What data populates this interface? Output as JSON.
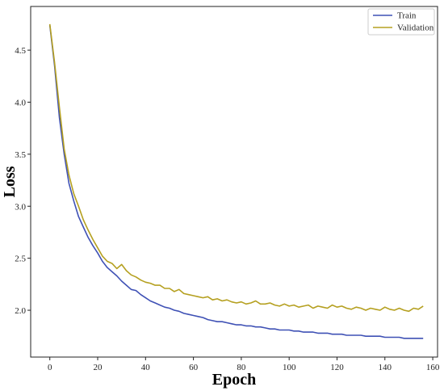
{
  "chart_data": {
    "type": "line",
    "title": "",
    "xlabel": "Epoch",
    "ylabel": "Loss",
    "xlim": [
      -8,
      162
    ],
    "ylim": [
      1.55,
      4.92
    ],
    "xticks": [
      0,
      20,
      40,
      60,
      80,
      100,
      120,
      140,
      160
    ],
    "yticks": [
      2.0,
      2.5,
      3.0,
      3.5,
      4.0,
      4.5
    ],
    "xtick_labels": [
      "0",
      "20",
      "40",
      "60",
      "80",
      "100",
      "120",
      "140",
      "160"
    ],
    "ytick_labels": [
      "2.0",
      "2.5",
      "3.0",
      "3.5",
      "4.0",
      "4.5"
    ],
    "grid": false,
    "legend_position": "top-right",
    "series": [
      {
        "name": "Train",
        "color": "#3f51b5",
        "x": [
          0,
          2,
          4,
          6,
          8,
          10,
          12,
          14,
          16,
          18,
          20,
          22,
          24,
          26,
          28,
          30,
          32,
          34,
          36,
          38,
          40,
          42,
          44,
          46,
          48,
          50,
          52,
          54,
          56,
          58,
          60,
          62,
          64,
          66,
          68,
          70,
          72,
          74,
          76,
          78,
          80,
          82,
          84,
          86,
          88,
          90,
          92,
          94,
          96,
          98,
          100,
          102,
          104,
          106,
          108,
          110,
          112,
          114,
          116,
          118,
          120,
          122,
          124,
          126,
          128,
          130,
          132,
          134,
          136,
          138,
          140,
          142,
          144,
          146,
          148,
          150,
          152,
          154,
          156
        ],
        "y": [
          4.74,
          4.35,
          3.85,
          3.5,
          3.22,
          3.05,
          2.9,
          2.8,
          2.7,
          2.62,
          2.55,
          2.47,
          2.41,
          2.37,
          2.33,
          2.28,
          2.24,
          2.2,
          2.19,
          2.15,
          2.12,
          2.09,
          2.07,
          2.05,
          2.03,
          2.02,
          2.0,
          1.99,
          1.97,
          1.96,
          1.95,
          1.94,
          1.93,
          1.91,
          1.9,
          1.89,
          1.89,
          1.88,
          1.87,
          1.86,
          1.86,
          1.85,
          1.85,
          1.84,
          1.84,
          1.83,
          1.82,
          1.82,
          1.81,
          1.81,
          1.81,
          1.8,
          1.8,
          1.79,
          1.79,
          1.79,
          1.78,
          1.78,
          1.78,
          1.77,
          1.77,
          1.77,
          1.76,
          1.76,
          1.76,
          1.76,
          1.75,
          1.75,
          1.75,
          1.75,
          1.74,
          1.74,
          1.74,
          1.74,
          1.73,
          1.73,
          1.73,
          1.73,
          1.73
        ]
      },
      {
        "name": "Validation",
        "color": "#b5a020",
        "x": [
          0,
          2,
          4,
          6,
          8,
          10,
          12,
          14,
          16,
          18,
          20,
          22,
          24,
          26,
          28,
          30,
          32,
          34,
          36,
          38,
          40,
          42,
          44,
          46,
          48,
          50,
          52,
          54,
          56,
          58,
          60,
          62,
          64,
          66,
          68,
          70,
          72,
          74,
          76,
          78,
          80,
          82,
          84,
          86,
          88,
          90,
          92,
          94,
          96,
          98,
          100,
          102,
          104,
          106,
          108,
          110,
          112,
          114,
          116,
          118,
          120,
          122,
          124,
          126,
          128,
          130,
          132,
          134,
          136,
          138,
          140,
          142,
          144,
          146,
          148,
          150,
          152,
          154,
          156
        ],
        "y": [
          4.75,
          4.38,
          3.95,
          3.55,
          3.3,
          3.12,
          3.0,
          2.87,
          2.77,
          2.68,
          2.6,
          2.52,
          2.47,
          2.45,
          2.4,
          2.44,
          2.38,
          2.34,
          2.32,
          2.29,
          2.27,
          2.26,
          2.24,
          2.24,
          2.21,
          2.21,
          2.18,
          2.2,
          2.16,
          2.15,
          2.14,
          2.13,
          2.12,
          2.13,
          2.1,
          2.11,
          2.09,
          2.1,
          2.08,
          2.07,
          2.08,
          2.06,
          2.07,
          2.09,
          2.06,
          2.06,
          2.07,
          2.05,
          2.04,
          2.06,
          2.04,
          2.05,
          2.03,
          2.04,
          2.05,
          2.02,
          2.04,
          2.03,
          2.02,
          2.05,
          2.03,
          2.04,
          2.02,
          2.01,
          2.03,
          2.02,
          2.0,
          2.02,
          2.01,
          2.0,
          2.03,
          2.01,
          2.0,
          2.02,
          2.0,
          1.99,
          2.02,
          2.01,
          2.04
        ]
      }
    ]
  }
}
